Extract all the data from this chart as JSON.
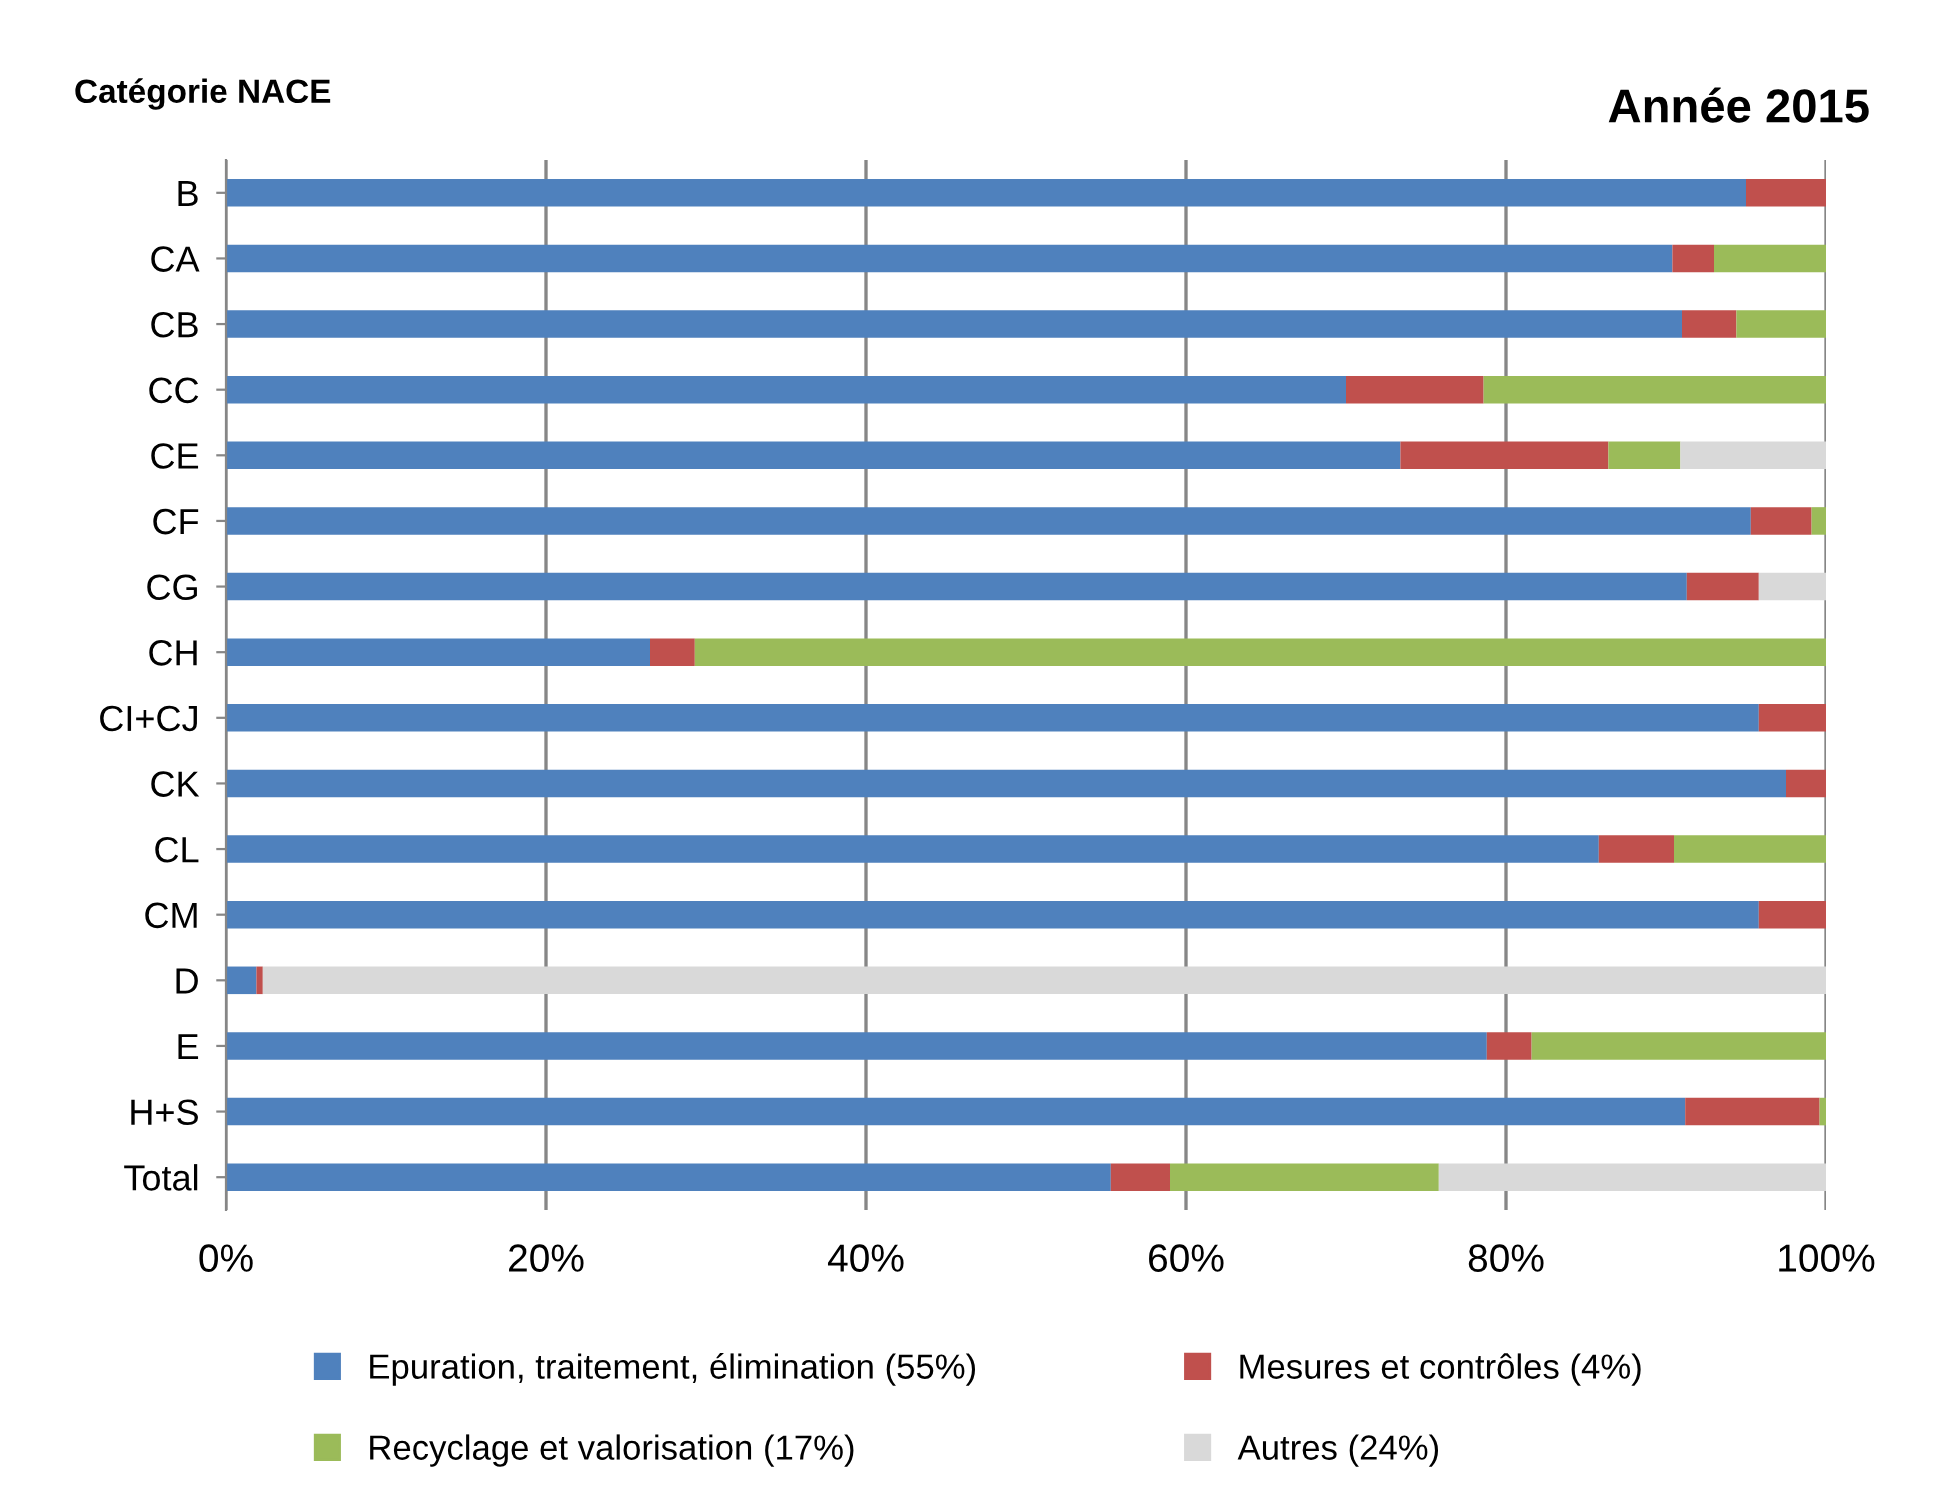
{
  "chart_data": {
    "type": "bar",
    "orientation": "horizontal",
    "stacked": true,
    "title": "Année 2015",
    "ylabel": "Catégorie NACE",
    "categories": [
      "B",
      "CA",
      "CB",
      "CC",
      "CE",
      "CF",
      "CG",
      "CH",
      "CI+CJ",
      "CK",
      "CL",
      "CM",
      "D",
      "E",
      "H+S",
      "Total"
    ],
    "series": [
      {
        "name": "Epuration, traitement, élimination (55%)",
        "color": "#4f81bd",
        "values": [
          95,
          90.4,
          91,
          70,
          73.4,
          95.3,
          91.3,
          26.5,
          95.8,
          97.5,
          85.8,
          95.8,
          1.9,
          78.8,
          91.2,
          55.3
        ]
      },
      {
        "name": "Mesures et contrôles (4%)",
        "color": "#c0504d",
        "values": [
          5,
          2.6,
          3.4,
          8.6,
          13,
          3.8,
          4.5,
          2.8,
          4.2,
          2.5,
          4.7,
          4.2,
          0.4,
          2.8,
          8.4,
          3.7
        ]
      },
      {
        "name": "Recyclage et valorisation (17%)",
        "color": "#9bbb59",
        "values": [
          0,
          7,
          5.6,
          21.4,
          4.5,
          0.9,
          0,
          70.7,
          0,
          0,
          9.5,
          0,
          0,
          18.4,
          0.4,
          16.8
        ]
      },
      {
        "name": "Autres (24%)",
        "color": "#d9d9d9",
        "values": [
          0,
          0,
          0,
          0,
          9.1,
          0,
          4.2,
          0,
          0,
          0,
          0,
          0,
          97.7,
          0,
          0,
          24.2
        ]
      }
    ],
    "xlim": [
      0,
      100
    ],
    "xticks": [
      {
        "value": 0,
        "label": "0%"
      },
      {
        "value": 20,
        "label": "20%"
      },
      {
        "value": 40,
        "label": "40%"
      },
      {
        "value": 60,
        "label": "60%"
      },
      {
        "value": 80,
        "label": "80%"
      },
      {
        "value": 100,
        "label": "100%"
      }
    ],
    "grid": "x",
    "legend": "bottom"
  }
}
